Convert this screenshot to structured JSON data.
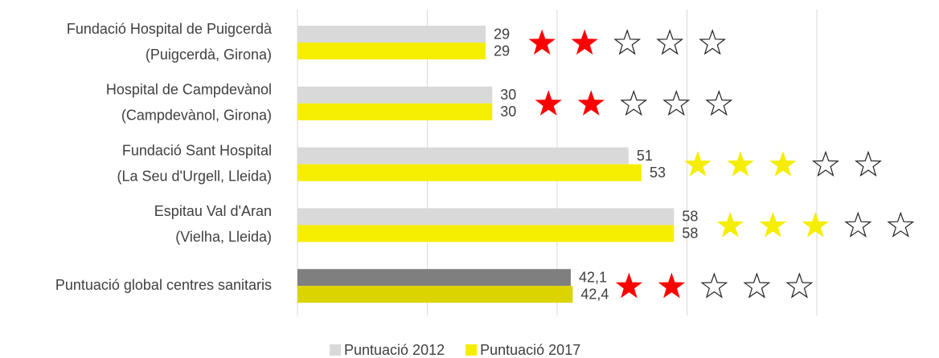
{
  "chart_data": {
    "type": "bar",
    "orientation": "horizontal",
    "categories": [
      [
        "Fundació Hospital de Puigcerdà",
        "(Puigcerdà, Girona)"
      ],
      [
        "Hospital de Campdevànol",
        "(Campdevànol, Girona)"
      ],
      [
        "Fundació Sant Hospital",
        "(La Seu d'Urgell, Lleida)"
      ],
      [
        "Espitau Val d'Aran",
        "(Vielha, Lleida)"
      ],
      [
        "Puntuació global centres sanitaris"
      ]
    ],
    "series": [
      {
        "name": "Puntuació 2012",
        "color": "#d9d9d9",
        "point_colors": [
          "#d9d9d9",
          "#d9d9d9",
          "#d9d9d9",
          "#d9d9d9",
          "#7f7f7f"
        ],
        "values": [
          29,
          30,
          51,
          58,
          42.1
        ],
        "value_labels": [
          "29",
          "30",
          "51",
          "58",
          "42,1"
        ]
      },
      {
        "name": "Puntuació 2017",
        "color": "#f5ee00",
        "point_colors": [
          "#f5ee00",
          "#f5ee00",
          "#f5ee00",
          "#f5ee00",
          "#dcd400"
        ],
        "values": [
          29,
          30,
          53,
          58,
          42.4
        ],
        "value_labels": [
          "29",
          "30",
          "53",
          "58",
          "42,4"
        ]
      }
    ],
    "stars": {
      "total": 5,
      "filled": [
        2,
        2,
        3,
        3,
        2
      ],
      "colors": [
        "#ff0000",
        "#ff0000",
        "#f5ee00",
        "#f5ee00",
        "#ff0000"
      ]
    },
    "xlim": [
      0,
      80
    ],
    "xticks": [
      0,
      20,
      40,
      60,
      80
    ],
    "grid": true,
    "legend": "bottom"
  }
}
